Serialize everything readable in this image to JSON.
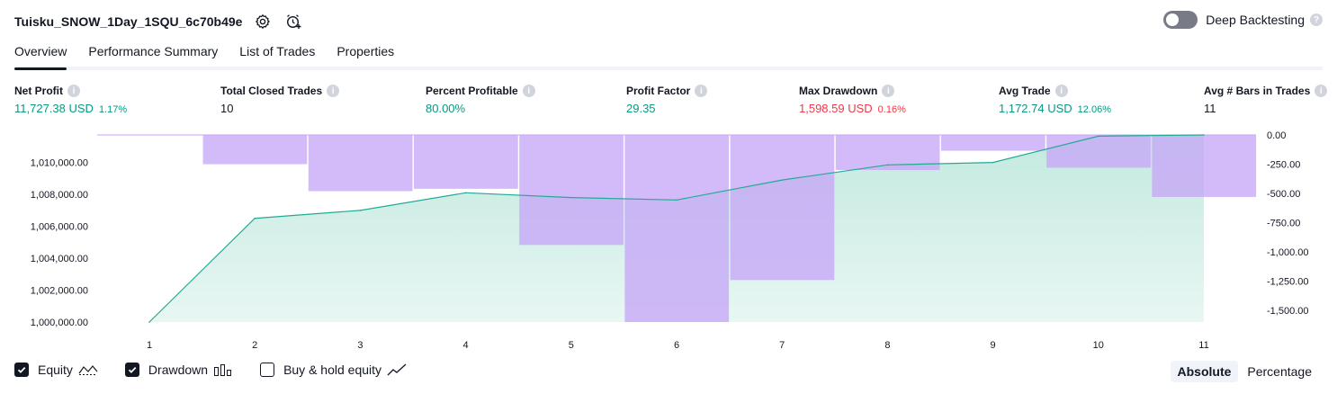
{
  "header": {
    "title": "Tuisku_SNOW_1Day_1SQU_6c70b49e",
    "settings_icon": "gear-icon",
    "add_alert_icon": "alarm-clock-plus-icon"
  },
  "deep_backtesting": {
    "label": "Deep Backtesting",
    "enabled": false
  },
  "tabs": [
    {
      "label": "Overview",
      "active": true
    },
    {
      "label": "Performance Summary",
      "active": false
    },
    {
      "label": "List of Trades",
      "active": false
    },
    {
      "label": "Properties",
      "active": false
    }
  ],
  "metrics": [
    {
      "label": "Net Profit",
      "value": "11,727.38 USD",
      "pct": "1.17%",
      "tone": "pos"
    },
    {
      "label": "Total Closed Trades",
      "value": "10",
      "pct": "",
      "tone": "neutral"
    },
    {
      "label": "Percent Profitable",
      "value": "80.00%",
      "pct": "",
      "tone": "pos"
    },
    {
      "label": "Profit Factor",
      "value": "29.35",
      "pct": "",
      "tone": "pos"
    },
    {
      "label": "Max Drawdown",
      "value": "1,598.59 USD",
      "pct": "0.16%",
      "tone": "neg"
    },
    {
      "label": "Avg Trade",
      "value": "1,172.74 USD",
      "pct": "12.06%",
      "tone": "pos"
    },
    {
      "label": "Avg # Bars in Trades",
      "value": "11",
      "pct": "",
      "tone": "neutral"
    }
  ],
  "chart_data": {
    "type": "line",
    "x": [
      1,
      2,
      3,
      4,
      5,
      6,
      7,
      8,
      9,
      10,
      11
    ],
    "series": [
      {
        "name": "Equity",
        "axis": "left",
        "values": [
          1000000,
          1006500,
          1007000,
          1008100,
          1007800,
          1007650,
          1008900,
          1009850,
          1010000,
          1011650,
          1011727.38
        ]
      },
      {
        "name": "Drawdown",
        "axis": "right",
        "type": "bar",
        "values": [
          0,
          -250,
          -480,
          -460,
          -940,
          -1598.59,
          -1240,
          -300,
          -135,
          -280,
          -530
        ]
      }
    ],
    "left_axis": {
      "ticks": [
        "1,000,000.00",
        "1,002,000.00",
        "1,004,000.00",
        "1,006,000.00",
        "1,008,000.00",
        "1,010,000.00"
      ],
      "range": [
        1000000,
        1011727.38
      ]
    },
    "right_axis": {
      "ticks": [
        "0.00",
        "-250.00",
        "-500.00",
        "-750.00",
        "-1,000.00",
        "-1,250.00",
        "-1,500.00"
      ],
      "range": [
        -1598.59,
        0
      ]
    },
    "x_ticks": [
      "1",
      "2",
      "3",
      "4",
      "5",
      "6",
      "7",
      "8",
      "9",
      "10",
      "11"
    ],
    "colors": {
      "equity_line": "#22ab94",
      "equity_fill": "#bfe8dd",
      "drawdown": "#c6a6f7"
    }
  },
  "legend": {
    "items": [
      {
        "label": "Equity",
        "checked": true,
        "icon": "equity-line-icon"
      },
      {
        "label": "Drawdown",
        "checked": true,
        "icon": "drawdown-bars-icon"
      },
      {
        "label": "Buy & hold equity",
        "checked": false,
        "icon": "buy-hold-line-icon"
      }
    ]
  },
  "view_mode": {
    "options": [
      {
        "label": "Absolute",
        "active": true
      },
      {
        "label": "Percentage",
        "active": false
      }
    ]
  }
}
